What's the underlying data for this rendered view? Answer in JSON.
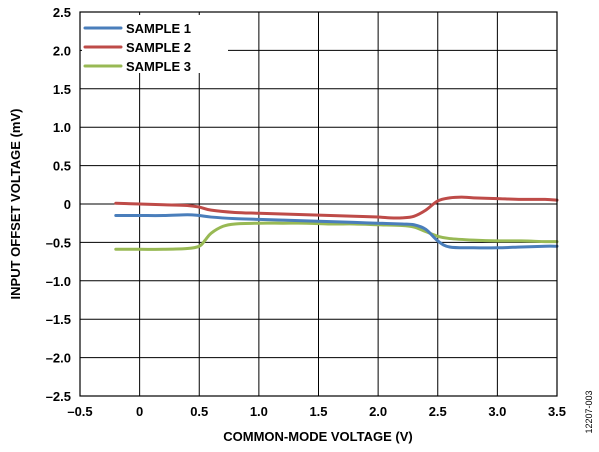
{
  "chart_data": {
    "type": "line",
    "xlabel": "COMMON-MODE VOLTAGE (V)",
    "ylabel": "INPUT OFFSET VOLTAGE (mV)",
    "xlim": [
      -0.5,
      3.5
    ],
    "ylim": [
      -2.5,
      2.5
    ],
    "xticks": [
      -0.5,
      0,
      0.5,
      1.0,
      1.5,
      2.0,
      2.5,
      3.0,
      3.5
    ],
    "xtick_labels": [
      "–0.5",
      "0",
      "0.5",
      "1.0",
      "1.5",
      "2.0",
      "2.5",
      "3.0",
      "3.5"
    ],
    "yticks": [
      2.5,
      2.0,
      1.5,
      1.0,
      0.5,
      0,
      -0.5,
      -1.0,
      -1.5,
      -2.0,
      -2.5
    ],
    "ytick_labels": [
      "2.5",
      "2.0",
      "1.5",
      "1.0",
      "0.5",
      "0",
      "–0.5",
      "–1.0",
      "–1.5",
      "–2.0",
      "–2.5"
    ],
    "grid": true,
    "legend_position": "top-left",
    "figure_id": "12207-003",
    "series": [
      {
        "name": "SAMPLE 1",
        "color": "#4a7ebb",
        "x": [
          -0.2,
          0.0,
          0.2,
          0.4,
          0.5,
          0.6,
          0.8,
          1.0,
          1.2,
          1.4,
          1.6,
          1.8,
          2.0,
          2.2,
          2.3,
          2.4,
          2.5,
          2.6,
          2.8,
          3.0,
          3.2,
          3.4,
          3.5
        ],
        "y": [
          -0.15,
          -0.15,
          -0.15,
          -0.14,
          -0.15,
          -0.17,
          -0.19,
          -0.2,
          -0.21,
          -0.22,
          -0.23,
          -0.24,
          -0.25,
          -0.26,
          -0.27,
          -0.33,
          -0.48,
          -0.56,
          -0.57,
          -0.57,
          -0.56,
          -0.55,
          -0.55
        ]
      },
      {
        "name": "SAMPLE 2",
        "color": "#be4b48",
        "x": [
          -0.2,
          0.0,
          0.2,
          0.4,
          0.5,
          0.6,
          0.8,
          1.0,
          1.2,
          1.4,
          1.6,
          1.8,
          2.0,
          2.1,
          2.2,
          2.3,
          2.4,
          2.5,
          2.6,
          2.7,
          2.8,
          3.0,
          3.2,
          3.4,
          3.5
        ],
        "y": [
          0.01,
          0.0,
          -0.01,
          -0.02,
          -0.04,
          -0.08,
          -0.11,
          -0.12,
          -0.13,
          -0.14,
          -0.15,
          -0.16,
          -0.17,
          -0.18,
          -0.18,
          -0.16,
          -0.08,
          0.04,
          0.08,
          0.09,
          0.08,
          0.07,
          0.06,
          0.06,
          0.05
        ]
      },
      {
        "name": "SAMPLE 3",
        "color": "#98b954",
        "x": [
          -0.2,
          0.0,
          0.2,
          0.4,
          0.5,
          0.55,
          0.6,
          0.7,
          0.8,
          1.0,
          1.2,
          1.4,
          1.6,
          1.8,
          2.0,
          2.2,
          2.3,
          2.4,
          2.5,
          2.6,
          2.8,
          3.0,
          3.2,
          3.4,
          3.5
        ],
        "y": [
          -0.59,
          -0.59,
          -0.59,
          -0.58,
          -0.55,
          -0.47,
          -0.38,
          -0.29,
          -0.26,
          -0.25,
          -0.25,
          -0.25,
          -0.26,
          -0.26,
          -0.27,
          -0.28,
          -0.3,
          -0.36,
          -0.42,
          -0.45,
          -0.47,
          -0.48,
          -0.48,
          -0.49,
          -0.49
        ]
      }
    ]
  }
}
